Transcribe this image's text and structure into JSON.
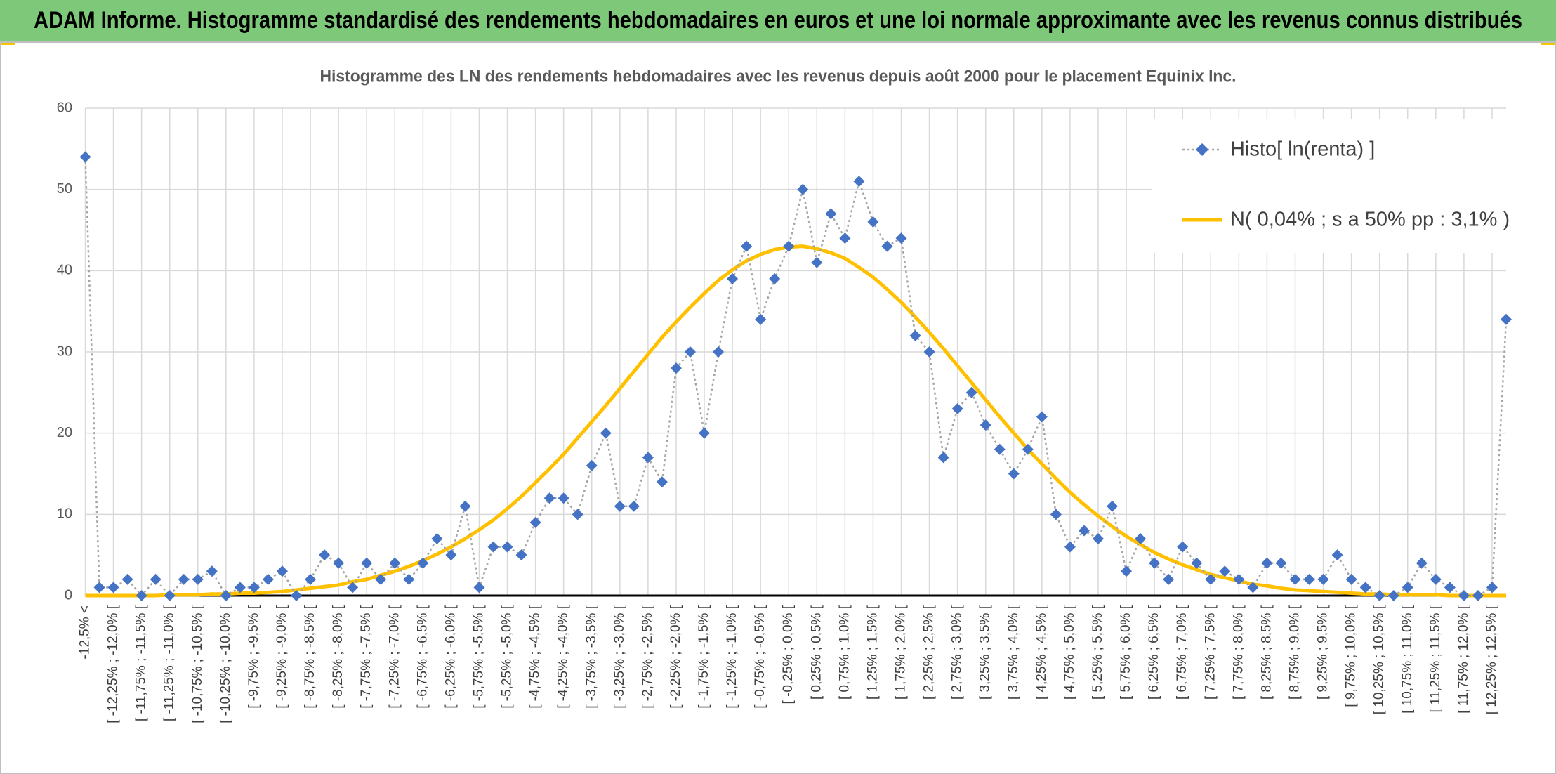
{
  "page_title": "ADAM Informe. Histogramme standardisé des rendements hebdomadaires en euros et une loi normale approximante avec les revenus connus distribués",
  "chart_data": {
    "type": "line",
    "title": "Histogramme des LN des rendements hebdomadaires avec les revenus depuis août 2000 pour le placement Equinix Inc.",
    "categories": [
      "-12,5% <",
      null,
      "[ -12,25% ; -12,0% [",
      null,
      "[ -11,75% ; -11,5% [",
      null,
      "[ -11,25% ; -11,0% [",
      null,
      "[ -10,75% ; -10,5% [",
      null,
      "[ -10,25% ; -10,0% [",
      null,
      "[ -9,75% ; -9,5% [",
      null,
      "[ -9,25% ; -9,0% [",
      null,
      "[ -8,75% ; -8,5% [",
      null,
      "[ -8,25% ; -8,0% [",
      null,
      "[ -7,75% ; -7,5% [",
      null,
      "[ -7,25% ; -7,0% [",
      null,
      "[ -6,75% ; -6,5% [",
      null,
      "[ -6,25% ; -6,0% [",
      null,
      "[ -5,75% ; -5,5% [",
      null,
      "[ -5,25% ; -5,0% [",
      null,
      "[ -4,75% ; -4,5% [",
      null,
      "[ -4,25% ; -4,0% [",
      null,
      "[ -3,75% ; -3,5% [",
      null,
      "[ -3,25% ; -3,0% [",
      null,
      "[ -2,75% ; -2,5% [",
      null,
      "[ -2,25% ; -2,0% [",
      null,
      "[ -1,75% ; -1,5% [",
      null,
      "[ -1,25% ; -1,0% [",
      null,
      "[ -0,75% ; -0,5% [",
      null,
      "[ -0,25% ; 0,0% [",
      null,
      "[ 0,25% ; 0,5% [",
      null,
      "[ 0,75% ; 1,0% [",
      null,
      "[ 1,25% ; 1,5% [",
      null,
      "[ 1,75% ; 2,0% [",
      null,
      "[ 2,25% ; 2,5% [",
      null,
      "[ 2,75% ; 3,0% [",
      null,
      "[ 3,25% ; 3,5% [",
      null,
      "[ 3,75% ; 4,0% [",
      null,
      "[ 4,25% ; 4,5% [",
      null,
      "[ 4,75% ; 5,0% [",
      null,
      "[ 5,25% ; 5,5% [",
      null,
      "[ 5,75% ; 6,0% [",
      null,
      "[ 6,25% ; 6,5% [",
      null,
      "[ 6,75% ; 7,0% [",
      null,
      "[ 7,25% ; 7,5% [",
      null,
      "[ 7,75% ; 8,0% [",
      null,
      "[ 8,25% ; 8,5% [",
      null,
      "[ 8,75% ; 9,0% [",
      null,
      "[ 9,25% ; 9,5% [",
      null,
      "[ 9,75% ; 10,0% [",
      null,
      "[ 10,25% ; 10,5% [",
      null,
      "[ 10,75% ; 11,0% [",
      null,
      "[ 11,25% ; 11,5% [",
      null,
      "[ 11,75% ; 12,0% [",
      null,
      "[ 12,25% ; 12,5% [",
      null
    ],
    "series": [
      {
        "name": "Histo[ ln(renta) ]",
        "color": "#4472c4",
        "line_color": "#a5a5a5",
        "values": [
          54,
          1,
          1,
          2,
          0,
          2,
          0,
          2,
          2,
          3,
          0,
          1,
          1,
          2,
          3,
          0,
          2,
          5,
          4,
          1,
          4,
          2,
          4,
          2,
          4,
          7,
          5,
          11,
          1,
          6,
          6,
          5,
          9,
          12,
          12,
          10,
          16,
          20,
          11,
          11,
          17,
          14,
          28,
          30,
          20,
          30,
          39,
          43,
          34,
          39,
          43,
          50,
          41,
          47,
          44,
          51,
          46,
          43,
          44,
          32,
          30,
          17,
          23,
          25,
          21,
          18,
          15,
          18,
          22,
          10,
          6,
          8,
          7,
          11,
          3,
          7,
          4,
          2,
          6,
          4,
          2,
          3,
          2,
          1,
          4,
          4,
          2,
          2,
          2,
          5,
          2,
          1,
          0,
          0,
          1,
          4,
          2,
          1,
          0,
          0,
          1,
          34
        ]
      },
      {
        "name": "N( 0,04% ; s a 50% pp : 3,1% )",
        "color": "#ffc000",
        "values": [
          0.0,
          0.0,
          0.0,
          0.0,
          0.0,
          0.0,
          0.1,
          0.1,
          0.1,
          0.2,
          0.2,
          0.3,
          0.3,
          0.4,
          0.5,
          0.7,
          0.9,
          1.1,
          1.3,
          1.7,
          2.0,
          2.5,
          3.0,
          3.6,
          4.3,
          5.1,
          6.0,
          7.0,
          8.1,
          9.3,
          10.7,
          12.2,
          13.9,
          15.6,
          17.4,
          19.4,
          21.4,
          23.4,
          25.5,
          27.6,
          29.7,
          31.8,
          33.7,
          35.5,
          37.2,
          38.8,
          40.1,
          41.2,
          42.0,
          42.6,
          42.9,
          43.0,
          42.7,
          42.2,
          41.5,
          40.4,
          39.2,
          37.7,
          36.1,
          34.3,
          32.4,
          30.4,
          28.3,
          26.2,
          24.1,
          22.0,
          20.0,
          18.0,
          16.2,
          14.4,
          12.7,
          11.2,
          9.8,
          8.5,
          7.3,
          6.3,
          5.3,
          4.5,
          3.8,
          3.2,
          2.6,
          2.2,
          1.8,
          1.4,
          1.2,
          0.9,
          0.7,
          0.6,
          0.5,
          0.4,
          0.3,
          0.2,
          0.2,
          0.1,
          0.1,
          0.1,
          0.1,
          0.0,
          0.0,
          0.0,
          0.0,
          0.0
        ]
      }
    ],
    "ylim": [
      0,
      60
    ],
    "yticks": [
      0,
      10,
      20,
      30,
      40,
      50,
      60
    ],
    "grid": true,
    "legend": "top-right"
  }
}
